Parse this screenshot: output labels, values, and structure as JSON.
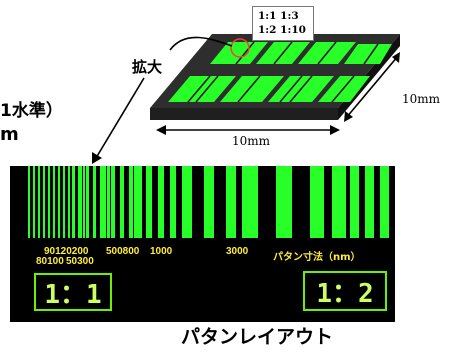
{
  "labels": {
    "cut_text_1": "1水準）",
    "cut_text_2": "m",
    "kakudai": "拡大",
    "layout": "パタンレイアウト",
    "callout_line1": "1:1 1:3",
    "callout_line2": "1:2 1:10",
    "dim_horizontal": "10mm",
    "dim_vertical": "10mm"
  },
  "barcode": {
    "scale_top": [
      "90120200",
      "500800",
      "1000",
      "3000"
    ],
    "scale_bottom": [
      "80100",
      "50300"
    ],
    "size_caption": "パタン寸法（nm）",
    "ratio_left": "1：1",
    "ratio_right": "1：2"
  },
  "colors": {
    "pattern_green": "#28ff28",
    "chip_dark": "#2b2b2b",
    "label_yellow": "#ffee33",
    "box_green": "#6cf000"
  }
}
